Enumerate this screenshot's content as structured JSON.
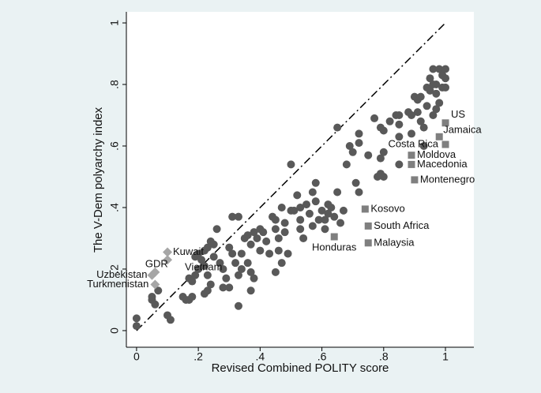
{
  "chart_data": {
    "type": "scatter",
    "x_label": "Revised Combined POLITY score",
    "y_label": "The V-Dem polyarchy index",
    "xlim": [
      -0.033,
      1.092
    ],
    "ylim": [
      -0.054,
      1.036
    ],
    "xticks": [
      0,
      {
        "value": 0.2,
        "label": ".2"
      },
      {
        "value": 0.4,
        "label": ".4"
      },
      {
        "value": 0.6,
        "label": ".6"
      },
      {
        "value": 0.8,
        "label": ".8"
      },
      1
    ],
    "yticks": [
      0,
      {
        "value": 0.2,
        "label": ".2"
      },
      {
        "value": 0.4,
        "label": ".4"
      },
      {
        "value": 0.6,
        "label": ".6"
      },
      {
        "value": 0.8,
        "label": ".8"
      },
      1
    ],
    "diagonal": true,
    "background": "#eaf2f3",
    "series": [
      {
        "marker": "circle",
        "color": "#595959",
        "x": [
          0,
          0,
          0.1,
          0.11,
          0.05,
          0.06,
          0.07,
          0.05,
          0.15,
          0.16,
          0.17,
          0.18,
          0.17,
          0.18,
          0.19,
          0.2,
          0.19,
          0.2,
          0.21,
          0.22,
          0.23,
          0.24,
          0.25,
          0.25,
          0.22,
          0.23,
          0.24,
          0.23,
          0.22,
          0.26,
          0.27,
          0.28,
          0.29,
          0.3,
          0.28,
          0.3,
          0.31,
          0.32,
          0.33,
          0.31,
          0.33,
          0.33,
          0.34,
          0.34,
          0.35,
          0.36,
          0.37,
          0.36,
          0.37,
          0.38,
          0.37,
          0.38,
          0.39,
          0.4,
          0.4,
          0.41,
          0.42,
          0.43,
          0.44,
          0.45,
          0.45,
          0.46,
          0.46,
          0.47,
          0.45,
          0.47,
          0.48,
          0.48,
          0.49,
          0.5,
          0.5,
          0.51,
          0.52,
          0.53,
          0.53,
          0.53,
          0.54,
          0.55,
          0.56,
          0.57,
          0.57,
          0.58,
          0.58,
          0.59,
          0.6,
          0.61,
          0.61,
          0.62,
          0.62,
          0.63,
          0.64,
          0.65,
          0.65,
          0.66,
          0.67,
          0.68,
          0.69,
          0.7,
          0.71,
          0.72,
          0.72,
          0.72,
          0.75,
          0.77,
          0.79,
          0.8,
          0.79,
          0.8,
          0.79,
          0.8,
          0.78,
          0.82,
          0.84,
          0.85,
          0.85,
          0.85,
          0.85,
          0.88,
          0.89,
          0.89,
          0.9,
          0.91,
          0.91,
          0.92,
          0.92,
          0.93,
          0.93,
          0.94,
          0.94,
          0.95,
          0.95,
          0.96,
          0.97,
          0.97,
          0.97,
          0.98,
          0.99,
          0.99,
          1,
          1,
          1,
          0.96,
          0.98,
          0.96
        ],
        "values": [
          0.04,
          0.015,
          0.05,
          0.035,
          0.1,
          0.085,
          0.13,
          0.11,
          0.11,
          0.1,
          0.1,
          0.11,
          0.17,
          0.16,
          0.18,
          0.2,
          0.24,
          0.25,
          0.23,
          0.26,
          0.27,
          0.29,
          0.28,
          0.24,
          0.12,
          0.13,
          0.15,
          0.18,
          0.21,
          0.33,
          0.22,
          0.2,
          0.17,
          0.14,
          0.14,
          0.27,
          0.25,
          0.22,
          0.18,
          0.37,
          0.37,
          0.08,
          0.2,
          0.25,
          0.3,
          0.31,
          0.28,
          0.22,
          0.19,
          0.17,
          0.13,
          0.32,
          0.3,
          0.26,
          0.33,
          0.32,
          0.29,
          0.25,
          0.37,
          0.36,
          0.33,
          0.3,
          0.26,
          0.22,
          0.19,
          0.4,
          0.35,
          0.32,
          0.25,
          0.54,
          0.39,
          0.39,
          0.44,
          0.4,
          0.36,
          0.33,
          0.3,
          0.41,
          0.38,
          0.34,
          0.45,
          0.48,
          0.42,
          0.36,
          0.39,
          0.36,
          0.33,
          0.41,
          0.38,
          0.4,
          0.37,
          0.45,
          0.66,
          0.35,
          0.39,
          0.54,
          0.6,
          0.58,
          0.48,
          0.61,
          0.64,
          0.45,
          0.57,
          0.69,
          0.66,
          0.65,
          0.56,
          0.58,
          0.51,
          0.5,
          0.5,
          0.68,
          0.7,
          0.7,
          0.67,
          0.63,
          0.54,
          0.71,
          0.7,
          0.64,
          0.76,
          0.75,
          0.71,
          0.76,
          0.68,
          0.66,
          0.6,
          0.79,
          0.73,
          0.82,
          0.78,
          0.8,
          0.8,
          0.77,
          0.72,
          0.85,
          0.83,
          0.79,
          0.85,
          0.82,
          0.79,
          0.85,
          0.74,
          0.7
        ]
      },
      {
        "marker": "square",
        "color": "#7f7f7f",
        "labels": [
          "US",
          "Jamaica",
          "Costa Rica",
          "Moldova",
          "Macedonia",
          "Montenegro",
          "Kosovo",
          "South Africa",
          "Malaysia",
          "Honduras"
        ],
        "x": [
          1,
          0.98,
          1,
          0.89,
          0.89,
          0.9,
          0.74,
          0.75,
          0.75,
          0.64
        ],
        "values": [
          0.675,
          0.63,
          0.605,
          0.57,
          0.54,
          0.49,
          0.395,
          0.34,
          0.285,
          0.305
        ]
      },
      {
        "marker": "diamond",
        "color": "#a6a6a6",
        "labels": [
          "Kuwait",
          "Vietnam",
          "GDR",
          "Uzbekistan",
          "Turkmenistan"
        ],
        "x": [
          0.1,
          0.1,
          0.06,
          0.05,
          0.06
        ],
        "values": [
          0.255,
          0.23,
          0.19,
          0.18,
          0.15
        ]
      }
    ]
  }
}
